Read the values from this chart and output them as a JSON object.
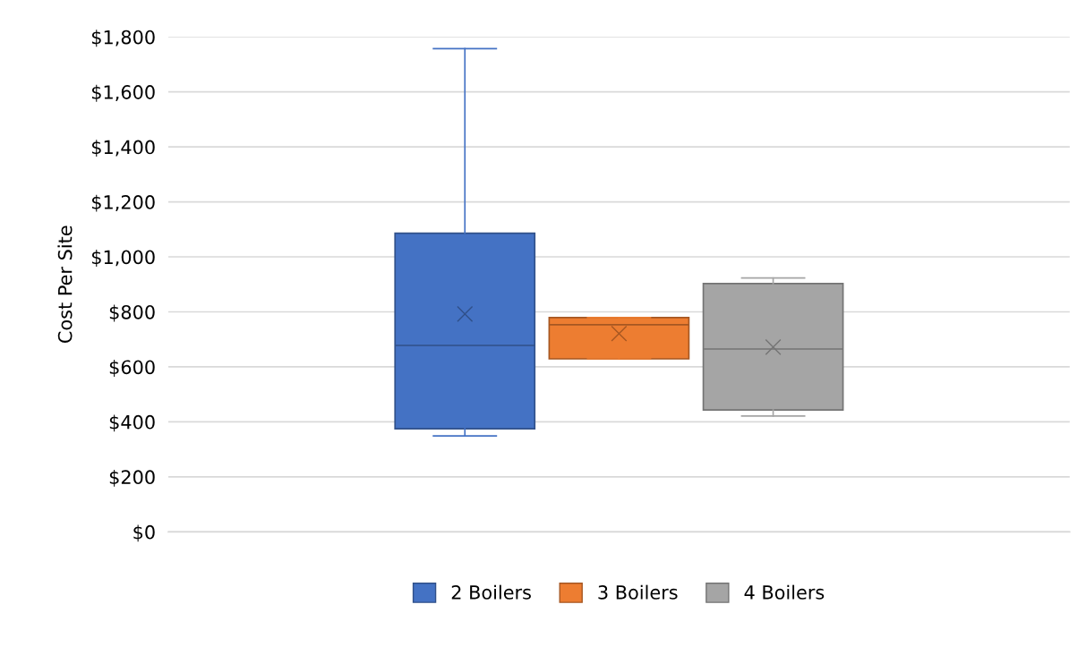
{
  "chart_data": {
    "type": "box",
    "ylabel": "Cost Per Site",
    "categories": [
      null
    ],
    "series": [
      {
        "name": "2 Boilers",
        "color": "#4472c4",
        "boxes": [
          {
            "low": 349,
            "q1": 375,
            "median": 678,
            "q3": 1086,
            "high": 1757,
            "mean": 792
          }
        ]
      },
      {
        "name": "3 Boilers",
        "color": "#ed7d31",
        "boxes": [
          {
            "low": 629,
            "q1": 629,
            "median": 753,
            "q3": 779,
            "high": 779,
            "mean": 721
          }
        ]
      },
      {
        "name": "4 Boilers",
        "color": "#a5a5a5",
        "boxes": [
          {
            "low": 421,
            "q1": 443,
            "median": 665,
            "q3": 903,
            "high": 923,
            "mean": 672
          }
        ]
      }
    ],
    "ylim": [
      0,
      1800
    ],
    "yticks": [
      {
        "value": 0,
        "label": "$0"
      },
      {
        "value": 200,
        "label": "$200"
      },
      {
        "value": 400,
        "label": "$400"
      },
      {
        "value": 600,
        "label": "$600"
      },
      {
        "value": 800,
        "label": "$800"
      },
      {
        "value": 1000,
        "label": "$1,000"
      },
      {
        "value": 1200,
        "label": "$1,200"
      },
      {
        "value": 1400,
        "label": "$1,400"
      },
      {
        "value": 1600,
        "label": "$1,600"
      },
      {
        "value": 1800,
        "label": "$1,800"
      }
    ],
    "grid": "y",
    "legend": "bottom",
    "marker": "cross"
  }
}
